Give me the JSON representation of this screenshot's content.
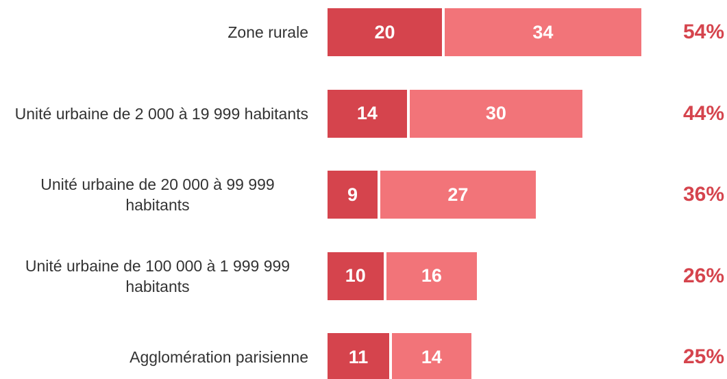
{
  "chart_data": {
    "type": "stacked-bar-horizontal",
    "categories": [
      "Zone rurale",
      "Unité urbaine de 2 000 à 19 999 habitants",
      "Unité urbaine de 20 000 à 99 999 habitants",
      "Unité urbaine de 100 000 à 1 999 999 habitants",
      "Agglomération parisienne"
    ],
    "series": [
      {
        "color": "#d5444d",
        "values": [
          20,
          14,
          9,
          10,
          11
        ]
      },
      {
        "color": "#f27479",
        "values": [
          34,
          30,
          27,
          16,
          14
        ]
      }
    ],
    "total_labels": [
      "54%",
      "44%",
      "36%",
      "26%",
      "25%"
    ],
    "total_color": "#d5444d"
  }
}
